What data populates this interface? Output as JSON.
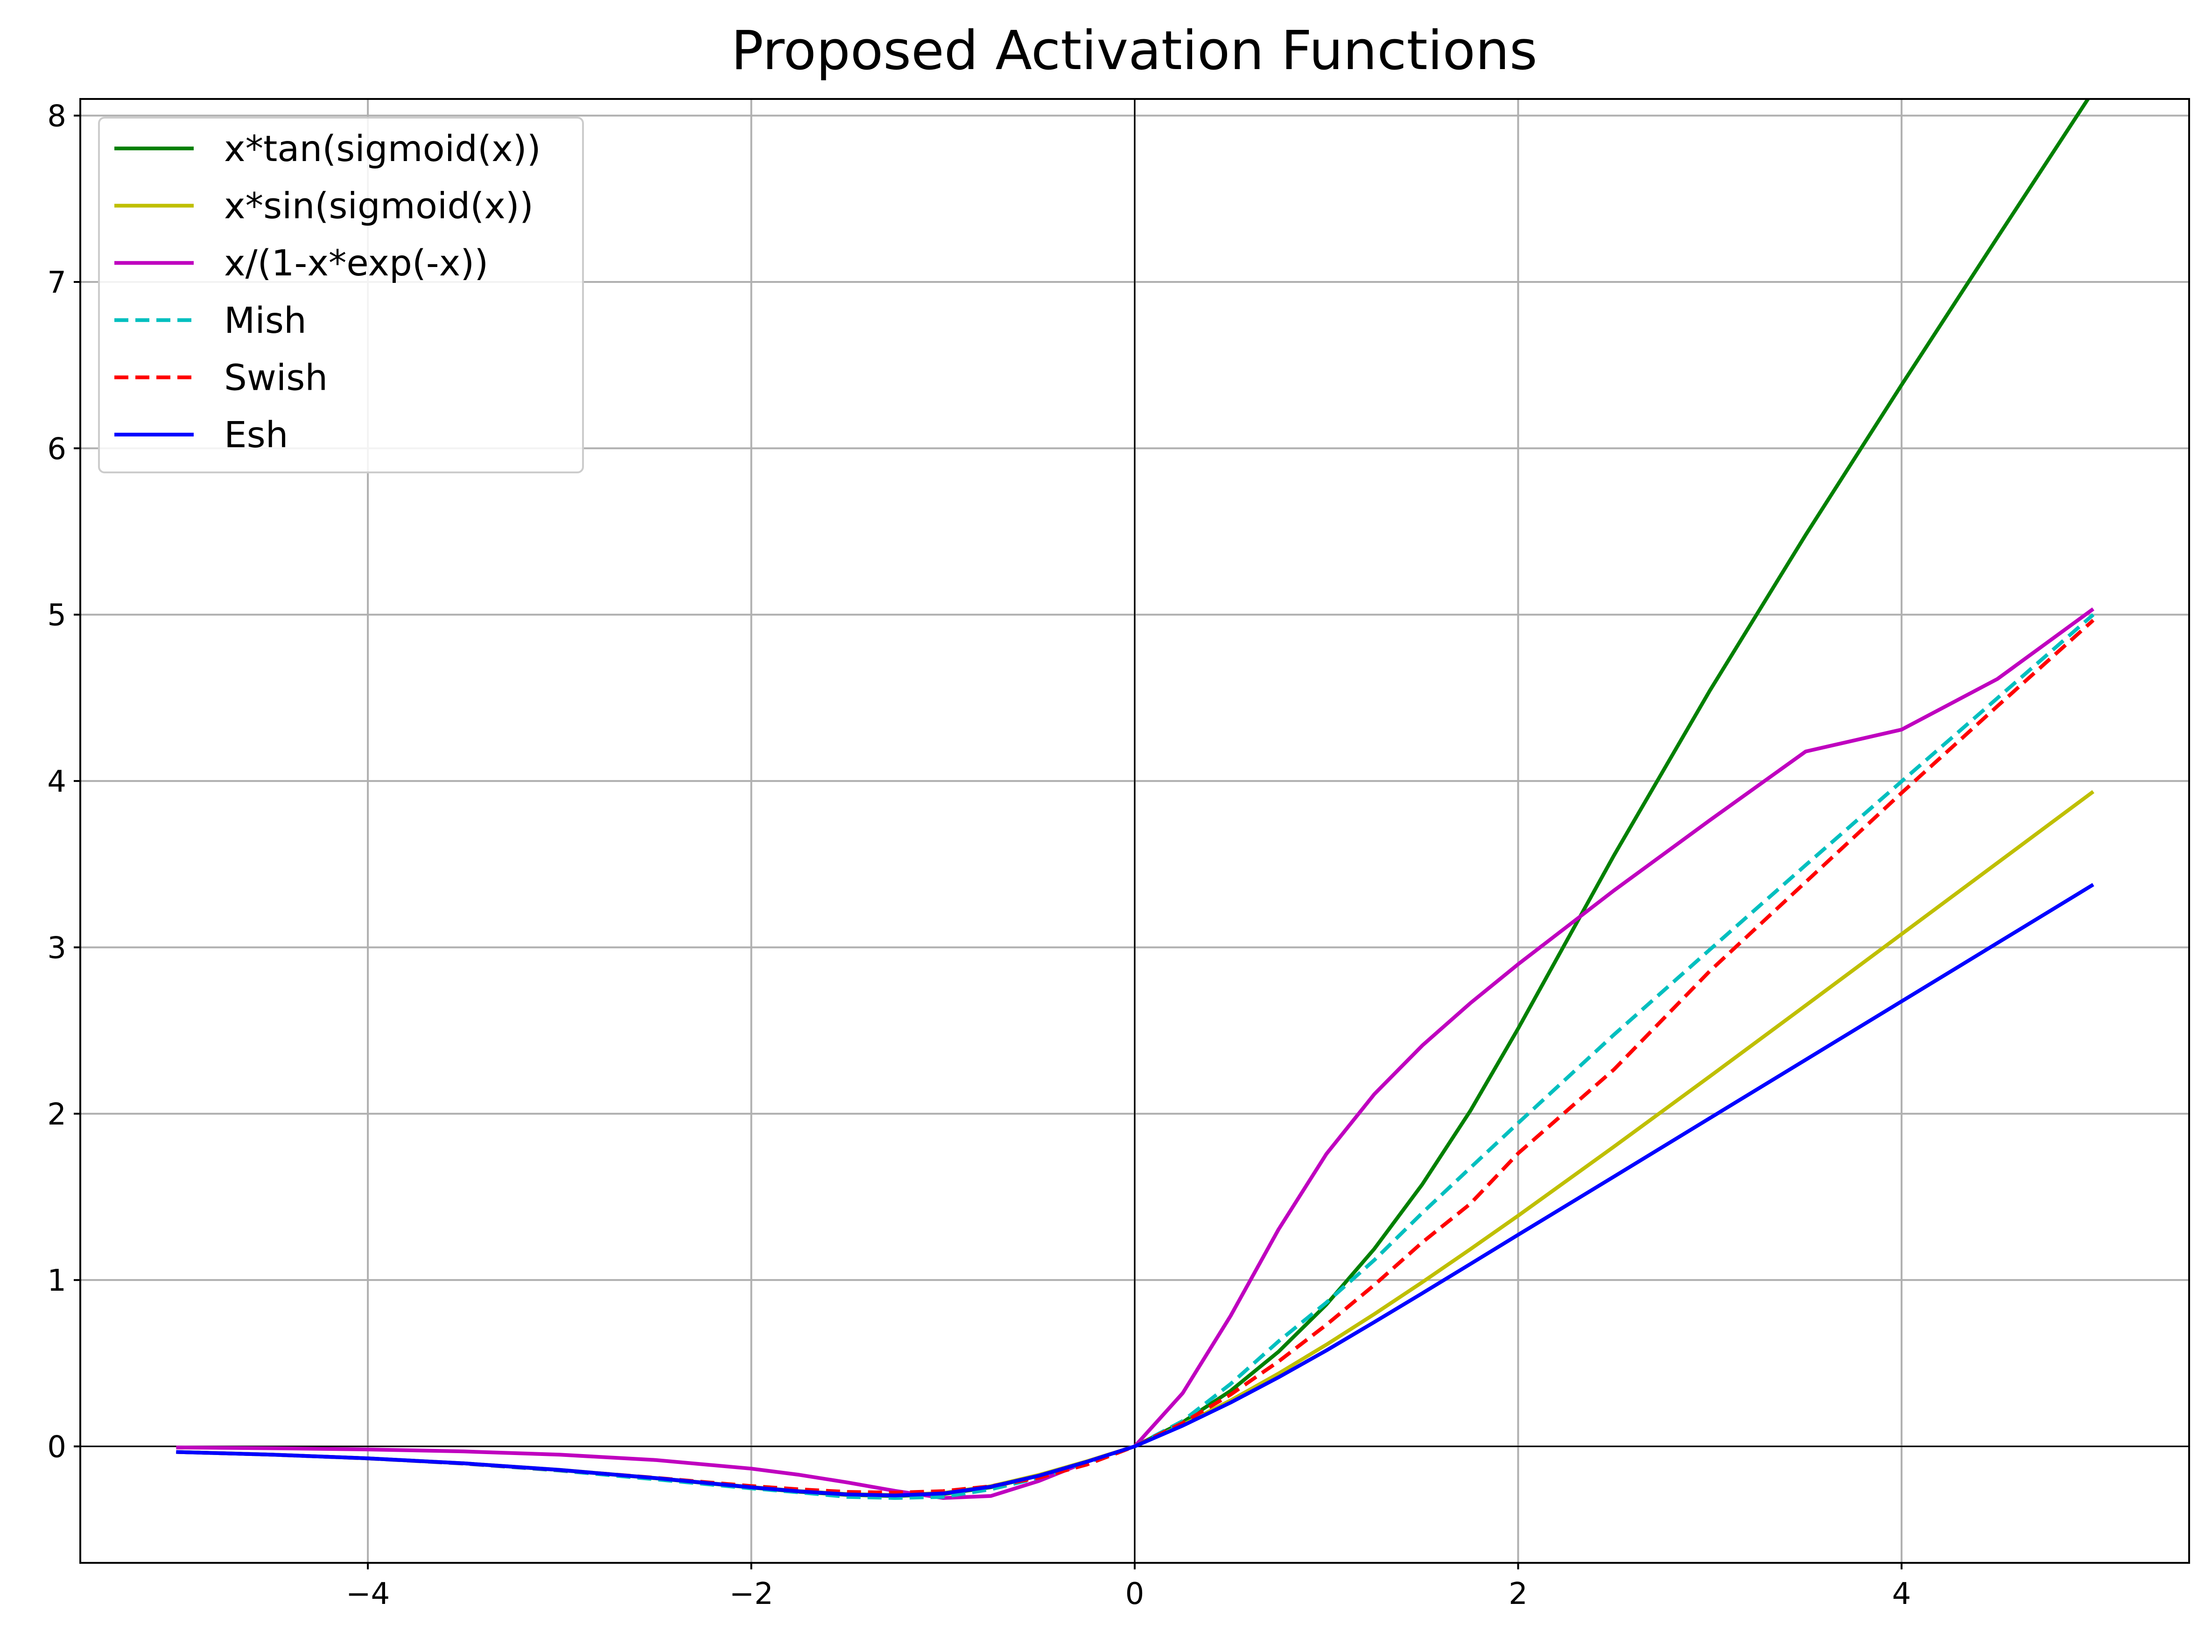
{
  "chart_data": {
    "type": "line",
    "title": "Proposed Activation Functions",
    "xlabel": "",
    "ylabel": "",
    "xlim": [
      -5.5,
      5.5
    ],
    "ylim": [
      -0.7,
      8.1
    ],
    "x_ticks": [
      -4,
      -2,
      0,
      2,
      4
    ],
    "x_tick_labels": [
      "−4",
      "−2",
      "0",
      "2",
      "4"
    ],
    "y_ticks": [
      0,
      1,
      2,
      3,
      4,
      5,
      6,
      7,
      8
    ],
    "y_tick_labels": [
      "0",
      "1",
      "2",
      "3",
      "4",
      "5",
      "6",
      "7",
      "8"
    ],
    "grid": true,
    "zero_lines": true,
    "legend_position": "upper-left",
    "x": [
      -5,
      -4.5,
      -4,
      -3.5,
      -3,
      -2.5,
      -2,
      -1.75,
      -1.5,
      -1.25,
      -1,
      -0.75,
      -0.5,
      -0.25,
      0,
      0.25,
      0.5,
      0.75,
      1,
      1.25,
      1.5,
      1.75,
      2,
      2.5,
      3,
      3.5,
      4,
      4.5,
      5
    ],
    "series": [
      {
        "name": "x*tan(sigmoid(x))",
        "color": "#008000",
        "dash": "solid",
        "values": [
          -0.0335,
          -0.0496,
          -0.0719,
          -0.1021,
          -0.142,
          -0.1915,
          -0.2475,
          -0.2725,
          -0.2915,
          -0.2985,
          -0.287,
          -0.2455,
          -0.1763,
          -0.0925,
          0,
          0.1451,
          0.3338,
          0.5688,
          0.8528,
          1.1878,
          1.5751,
          2.0161,
          2.512,
          3.553,
          4.5434,
          5.4793,
          6.3807,
          7.2673,
          8.1483
        ]
      },
      {
        "name": "x*sin(sigmoid(x))",
        "color": "#bfbf00",
        "dash": "solid",
        "values": [
          -0.0334,
          -0.0494,
          -0.0716,
          -0.1016,
          -0.141,
          -0.1898,
          -0.2444,
          -0.2685,
          -0.2864,
          -0.2923,
          -0.2799,
          -0.2393,
          -0.1717,
          -0.0897,
          0,
          0.1296,
          0.2763,
          0.4378,
          0.6116,
          0.7954,
          0.9871,
          1.1848,
          1.387,
          1.8018,
          2.2243,
          2.6509,
          3.0793,
          3.5079,
          3.9362
        ]
      },
      {
        "name": "x/(1-x*exp(-x))",
        "color": "#bf00bf",
        "dash": "solid",
        "values": [
          -0.0067,
          -0.0111,
          -0.0183,
          -0.0302,
          -0.0498,
          -0.0818,
          -0.1338,
          -0.1708,
          -0.2165,
          -0.2672,
          -0.3101,
          -0.2978,
          -0.2082,
          -0.0925,
          0,
          0.3198,
          0.7844,
          1.3037,
          1.7581,
          2.1177,
          2.4097,
          2.6639,
          2.8986,
          3.3419,
          3.7643,
          4.1772,
          4.3088,
          4.6135,
          5.0343
        ]
      },
      {
        "name": "Mish",
        "color": "#00bfbf",
        "dash": "dashed",
        "values": [
          -0.0336,
          -0.0499,
          -0.0726,
          -0.1037,
          -0.1456,
          -0.1981,
          -0.2525,
          -0.2763,
          -0.3034,
          -0.3102,
          -0.3034,
          -0.2577,
          -0.1887,
          -0.0984,
          0,
          0.1525,
          0.3752,
          0.6313,
          0.8651,
          1.1203,
          1.4034,
          1.6742,
          1.944,
          2.4751,
          2.9865,
          3.4943,
          3.9974,
          4.4983,
          5.0
        ]
      },
      {
        "name": "Swish",
        "color": "#ff0000",
        "dash": "dashed",
        "values": [
          -0.0335,
          -0.0497,
          -0.0719,
          -0.1026,
          -0.1423,
          -0.1887,
          -0.2384,
          -0.2579,
          -0.2736,
          -0.278,
          -0.2689,
          -0.2396,
          -0.1888,
          -0.1094,
          0,
          0.1406,
          0.3112,
          0.5104,
          0.7311,
          0.9706,
          1.2264,
          1.4579,
          1.7616,
          2.2658,
          2.8577,
          3.3926,
          3.928,
          4.4501,
          4.9665
        ]
      },
      {
        "name": "Esh",
        "color": "#0000ff",
        "dash": "solid",
        "values": [
          -0.0335,
          -0.0496,
          -0.0718,
          -0.1018,
          -0.1414,
          -0.1905,
          -0.2458,
          -0.2705,
          -0.2885,
          -0.2948,
          -0.283,
          -0.2424,
          -0.1764,
          -0.0926,
          0,
          0.1245,
          0.2634,
          0.4151,
          0.5768,
          0.7473,
          0.9204,
          1.0959,
          1.2721,
          1.6219,
          1.9733,
          2.3242,
          2.6753,
          3.0263,
          3.3772
        ]
      }
    ]
  }
}
